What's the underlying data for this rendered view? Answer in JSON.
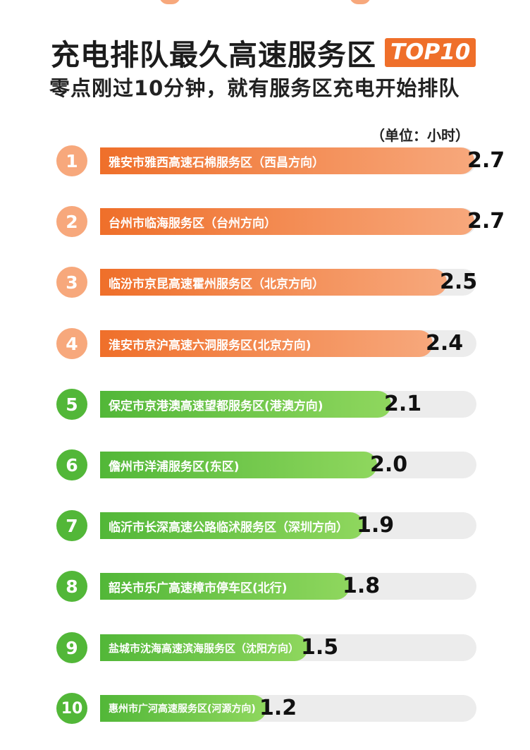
{
  "title": "充电排队最久高速服务区",
  "badge": "TOP10",
  "subtitle": "零点刚过10分钟，就有服务区充电开始排队",
  "unit": "（单位：小时）",
  "colors": {
    "orange": "#ef6f2a",
    "orange_light": "#f7a87c",
    "green": "#52b738",
    "green_light": "#8fd75e",
    "track": "#ececec"
  },
  "chart_data": {
    "type": "bar",
    "orientation": "horizontal",
    "categories": [
      "雅安市雅西高速石棉服务区（西昌方向）",
      "台州市临海服务区（台州方向）",
      "临汾市京昆高速霍州服务区（北京方向）",
      "淮安市京沪高速六洞服务区(北京方向)",
      "保定市京港澳高速望都服务区(港澳方向)",
      "儋州市洋浦服务区(东区)",
      "临沂市长深高速公路临沭服务区（深圳方向）",
      "韶关市乐广高速樟市停车区(北行)",
      "盐城市沈海高速滨海服务区（沈阳方向）",
      "惠州市广河高速服务区(河源方向)"
    ],
    "ranks": [
      "1",
      "2",
      "3",
      "4",
      "5",
      "6",
      "7",
      "8",
      "9",
      "10"
    ],
    "values": [
      2.7,
      2.7,
      2.5,
      2.4,
      2.1,
      2.0,
      1.9,
      1.8,
      1.5,
      1.2
    ],
    "value_labels": [
      "2.7",
      "2.7",
      "2.5",
      "2.4",
      "2.1",
      "2.0",
      "1.9",
      "1.8",
      "1.5",
      "1.2"
    ],
    "bar_colors": [
      "orange",
      "orange",
      "orange",
      "orange",
      "green",
      "green",
      "green",
      "green",
      "green",
      "green"
    ]
  }
}
